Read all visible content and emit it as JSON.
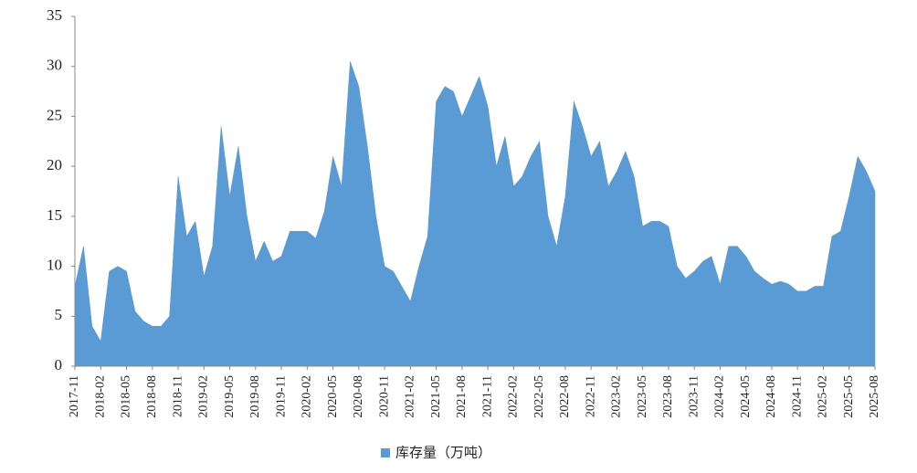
{
  "chart_data": {
    "type": "area",
    "categories": [
      "2017-11",
      null,
      null,
      "2018-02",
      null,
      null,
      "2018-05",
      null,
      null,
      "2018-08",
      null,
      null,
      "2018-11",
      null,
      null,
      "2019-02",
      null,
      null,
      "2019-05",
      null,
      null,
      "2019-08",
      null,
      null,
      "2019-11",
      null,
      null,
      "2020-02",
      null,
      null,
      "2020-05",
      null,
      null,
      "2020-08",
      null,
      null,
      "2020-11",
      null,
      null,
      "2021-02",
      null,
      null,
      "2021-05",
      null,
      null,
      "2021-08",
      null,
      null,
      "2021-11",
      null,
      null,
      "2022-02",
      null,
      null,
      "2022-05",
      null,
      null,
      "2022-08",
      null,
      null,
      "2022-11",
      null,
      null,
      "2023-02",
      null,
      null,
      "2023-05",
      null,
      null,
      "2023-08",
      null,
      null,
      "2023-11",
      null,
      null,
      "2024-02",
      null,
      null,
      "2024-05",
      null,
      null,
      "2024-08",
      null,
      null,
      "2024-11",
      null,
      null,
      "2025-02",
      null,
      null,
      "2025-05",
      null,
      null,
      "2025-08"
    ],
    "series": [
      {
        "name": "库存量（万吨）",
        "color": "#5b9bd5",
        "values": [
          8,
          12,
          4,
          2.5,
          9.5,
          10,
          9.5,
          5.5,
          4.5,
          4,
          4,
          5,
          19,
          13,
          14.5,
          9,
          12,
          24,
          17,
          22,
          15,
          10.5,
          12.5,
          10.5,
          11,
          13.5,
          13.5,
          13.5,
          12.8,
          15.5,
          21,
          18,
          30.5,
          28,
          22,
          15,
          10,
          9.5,
          8,
          6.5,
          10,
          13,
          26.5,
          28,
          27.5,
          25,
          27,
          29,
          26,
          20,
          23,
          18,
          19,
          21,
          22.5,
          15,
          12,
          17,
          26.5,
          24,
          21,
          22.5,
          18,
          19.5,
          21.5,
          19,
          14,
          14.5,
          14.5,
          14,
          10,
          8.8,
          9.5,
          10.5,
          11,
          8.2,
          12,
          12,
          11,
          9.5,
          8.8,
          8.2,
          8.5,
          8.2,
          7.5,
          7.5,
          8,
          8,
          13,
          13.5,
          17,
          21,
          19.5,
          17.5
        ]
      }
    ],
    "ylim": [
      0,
      35
    ],
    "yticks": [
      0,
      5,
      10,
      15,
      20,
      25,
      30,
      35
    ],
    "grid": false,
    "legend": "bottom"
  }
}
